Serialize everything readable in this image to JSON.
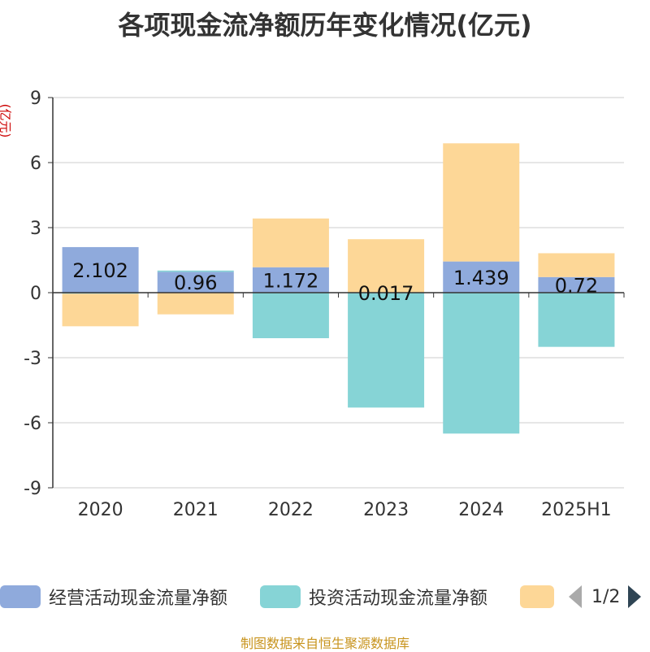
{
  "chart_data": {
    "type": "bar",
    "stacked": true,
    "title": "各项现金流净额历年变化情况(亿元)",
    "ylabel": "(亿元)",
    "categories": [
      "2020",
      "2021",
      "2022",
      "2023",
      "2024",
      "2025H1"
    ],
    "ylim": [
      -9,
      9
    ],
    "yticks": [
      9,
      6,
      3,
      0,
      -3,
      -6,
      -9
    ],
    "grid": true,
    "series": [
      {
        "name": "经营活动现金流量净额",
        "color": "#8faadc",
        "values": [
          2.102,
          0.96,
          1.172,
          0.017,
          1.439,
          0.72
        ]
      },
      {
        "name": "投资活动现金流量净额",
        "color": "#86d4d6",
        "values": [
          -0.05,
          0.06,
          -2.1,
          -5.3,
          -6.5,
          -2.5
        ]
      },
      {
        "name": "",
        "color": "#fdd797",
        "values": [
          -1.5,
          -1.0,
          2.25,
          2.45,
          5.45,
          1.1
        ]
      }
    ],
    "data_labels": [
      "2.102",
      "0.96",
      "1.172",
      "0.017",
      "1.439",
      "0.72"
    ]
  },
  "legend": {
    "items": [
      {
        "label": "经营活动现金流量净额",
        "color": "#8faadc"
      },
      {
        "label": "投资活动现金流量净额",
        "color": "#86d4d6"
      },
      {
        "label": "",
        "color": "#fdd797"
      }
    ],
    "page": "1/2"
  },
  "source": "制图数据来自恒生聚源数据库"
}
